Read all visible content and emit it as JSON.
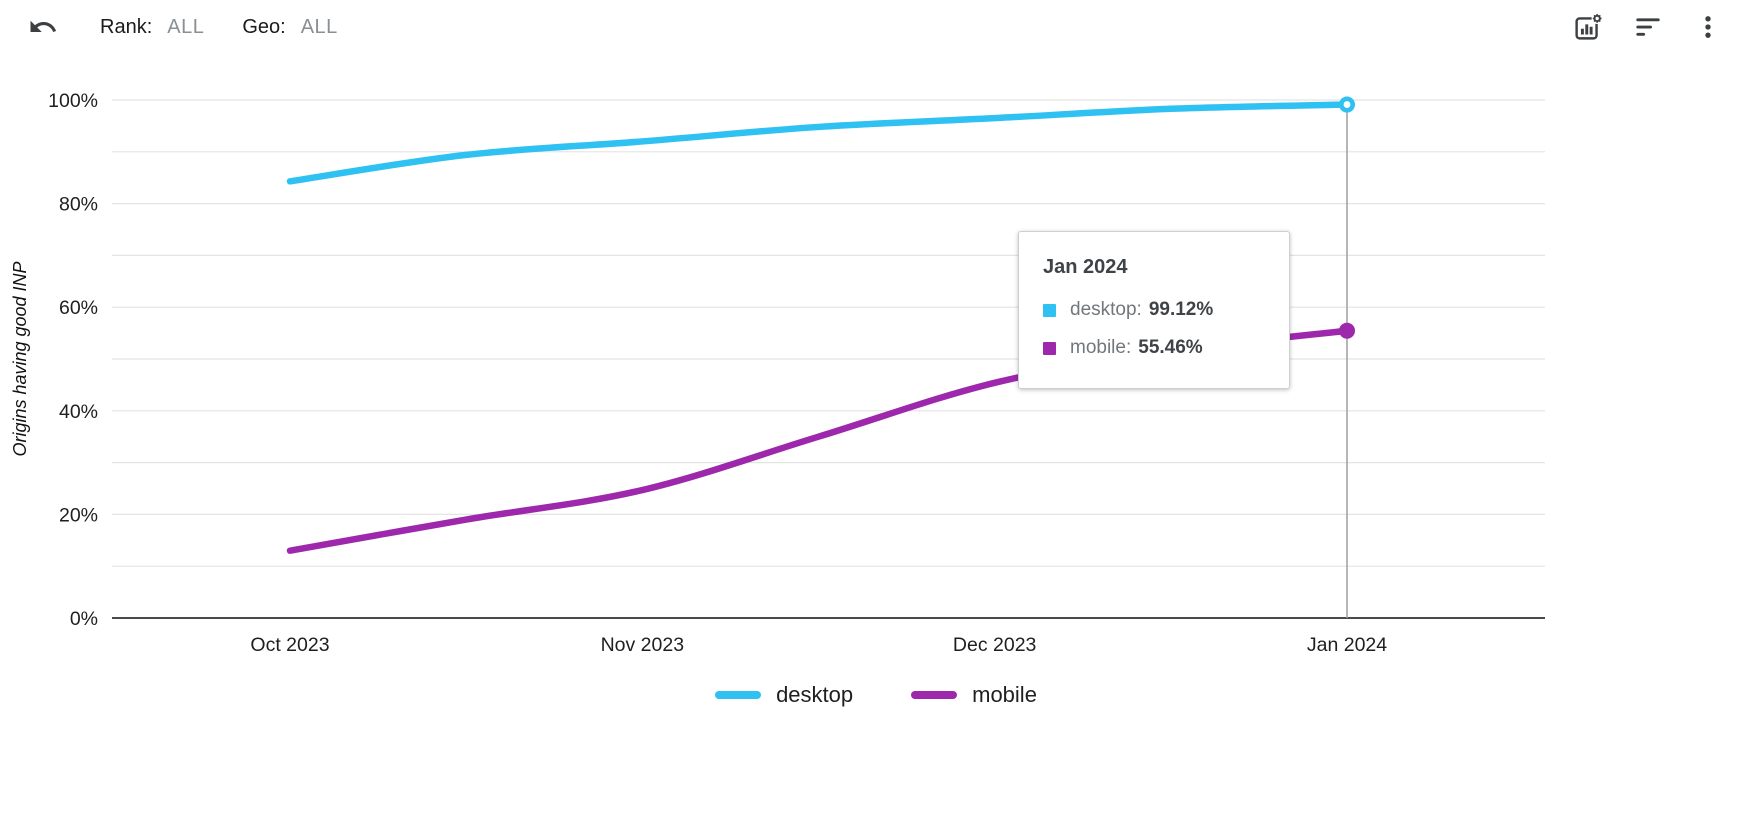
{
  "toolbar": {
    "rank_label": "Rank:",
    "rank_value": "ALL",
    "geo_label": "Geo:",
    "geo_value": "ALL"
  },
  "tooltip": {
    "title": "Jan 2024",
    "rows": [
      {
        "series": "desktop",
        "label": "desktop:",
        "value": "99.12%"
      },
      {
        "series": "mobile",
        "label": "mobile:",
        "value": "55.46%"
      }
    ]
  },
  "chart_data": {
    "type": "line",
    "title": "",
    "ylabel": "Origins having good INP",
    "ylim": [
      0,
      100
    ],
    "ytick_values": [
      0,
      20,
      40,
      60,
      80,
      100
    ],
    "ytick_labels": [
      "0%",
      "20%",
      "40%",
      "60%",
      "80%",
      "100%"
    ],
    "grid_step": 10,
    "x_ticks": [
      "Oct 2023",
      "Nov 2023",
      "Dec 2023",
      "Jan 2024"
    ],
    "x_tick_positions": [
      0,
      1,
      2,
      3
    ],
    "sample_positions": [
      0,
      0.5,
      1,
      1.5,
      2,
      2.5,
      3
    ],
    "series": [
      {
        "name": "desktop",
        "color": "#2fc1f1",
        "marker": "ring",
        "values": [
          84.3,
          89.4,
          92.0,
          94.8,
          96.5,
          98.3,
          99.12
        ],
        "final_value": "99.12%"
      },
      {
        "name": "mobile",
        "color": "#9d28ac",
        "marker": "dot",
        "values": [
          13.0,
          19.0,
          24.7,
          35.0,
          45.4,
          51.5,
          55.46
        ],
        "final_value": "55.46%"
      }
    ],
    "crosshair_x_label": "Jan 2024",
    "legend_position": "bottom",
    "grid": true
  }
}
